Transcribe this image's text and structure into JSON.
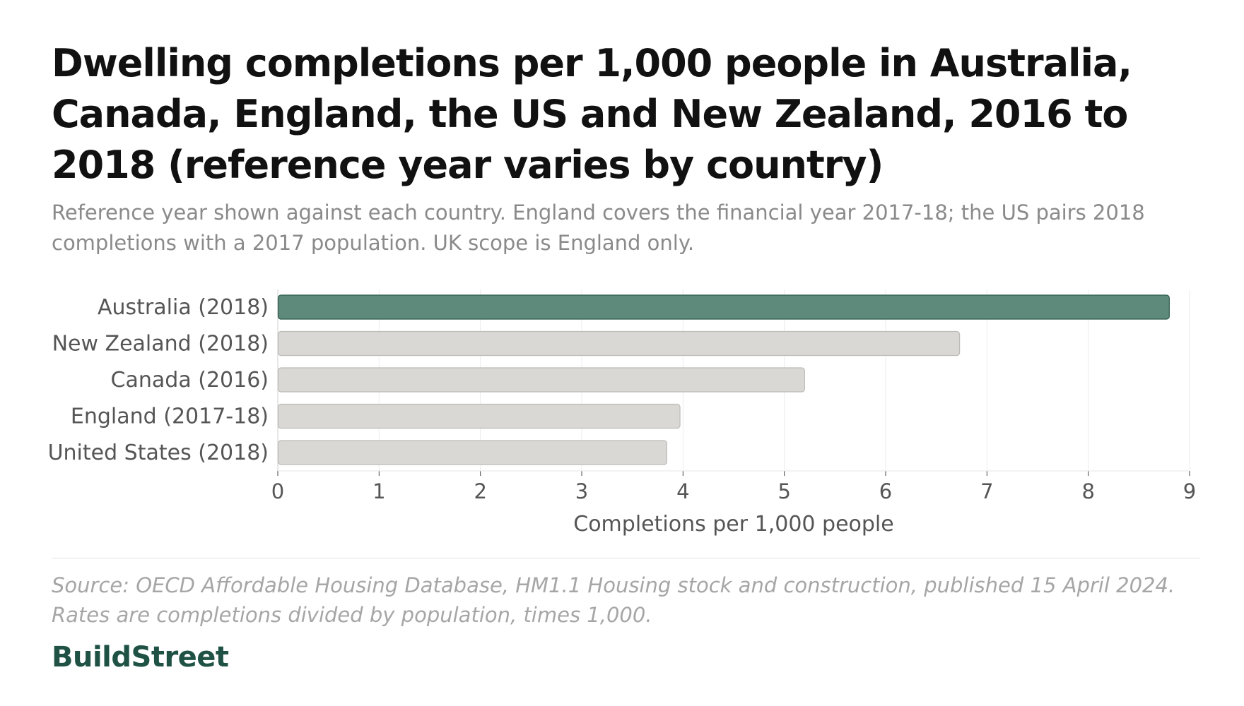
{
  "title": "Dwelling completions per 1,000 people in Australia, Canada, England, the US and New Zealand, 2016 to 2018 (reference year varies by country)",
  "subtitle": "Reference year shown against each country. England covers the financial year 2017-18; the US pairs 2018 completions with a 2017 population. UK scope is England only.",
  "source": "Source: OECD Affordable Housing Database, HM1.1 Housing stock and construction, published 15 April 2024. Rates are completions divided by population, times 1,000.",
  "brand": "BuildStreet",
  "colors": {
    "highlight": "#5e8a7b",
    "highlight_stroke": "#2f5a4c",
    "muted": "#d9d8d4",
    "muted_stroke": "#bdbcb7"
  },
  "chart_data": {
    "type": "bar",
    "orientation": "horizontal",
    "categories": [
      "Australia (2018)",
      "New Zealand (2018)",
      "Canada (2016)",
      "England (2017-18)",
      "United States (2018)"
    ],
    "values": [
      8.8,
      6.73,
      5.2,
      3.97,
      3.84
    ],
    "highlight": "Australia (2018)",
    "xlabel": "Completions per 1,000 people",
    "ylabel": "",
    "xlim": [
      0,
      9
    ],
    "xticks": [
      "0",
      "1",
      "2",
      "3",
      "4",
      "5",
      "6",
      "7",
      "8",
      "9"
    ],
    "grid": true
  }
}
